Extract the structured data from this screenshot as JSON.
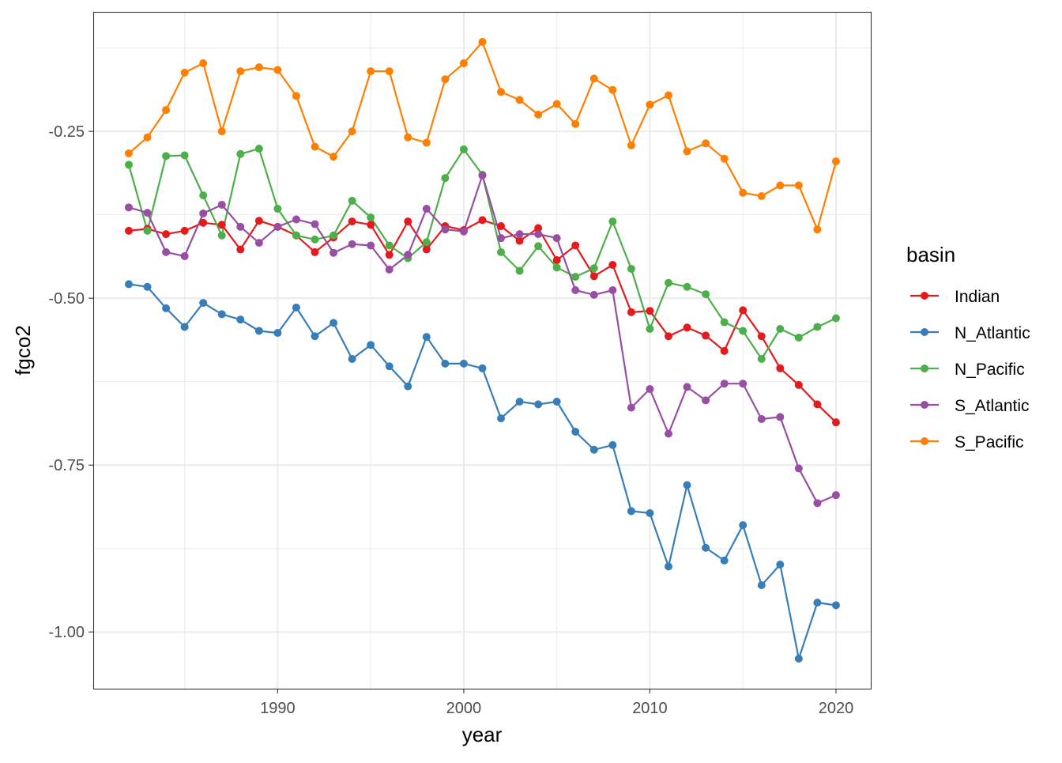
{
  "chart_data": {
    "type": "line",
    "title": "",
    "xlabel": "year",
    "ylabel": "fgco2",
    "xlim": [
      1980.09,
      2021.87
    ],
    "ylim": [
      -1.085,
      -0.071
    ],
    "x_ticks": [
      1990,
      2000,
      2010,
      2020
    ],
    "x_tick_labels": [
      "1990",
      "2000",
      "2010",
      "2020"
    ],
    "x_minor_ticks": [
      1985,
      1995,
      2005,
      2015
    ],
    "y_ticks": [
      -0.25,
      -0.5,
      -0.75,
      -1.0
    ],
    "y_tick_labels": [
      "-0.25",
      "-0.50",
      "-0.75",
      "-1.00"
    ],
    "y_minor_ticks": [
      -0.125,
      -0.375,
      -0.625,
      -0.875
    ],
    "grid": true,
    "legend": {
      "title": "basin",
      "position": "right"
    },
    "x": [
      1982,
      1983,
      1984,
      1985,
      1986,
      1987,
      1988,
      1989,
      1990,
      1991,
      1992,
      1993,
      1994,
      1995,
      1996,
      1997,
      1998,
      1999,
      2000,
      2001,
      2002,
      2003,
      2004,
      2005,
      2006,
      2007,
      2008,
      2009,
      2010,
      2011,
      2012,
      2013,
      2014,
      2015,
      2016,
      2017,
      2018,
      2019,
      2020
    ],
    "series": [
      {
        "name": "Indian",
        "color": "#E41A1C",
        "values": [
          -0.399,
          -0.396,
          -0.404,
          -0.399,
          -0.387,
          -0.39,
          -0.427,
          -0.384,
          -0.393,
          -0.406,
          -0.431,
          -0.409,
          -0.385,
          -0.39,
          -0.435,
          -0.385,
          -0.427,
          -0.392,
          -0.398,
          -0.383,
          -0.392,
          -0.414,
          -0.395,
          -0.443,
          -0.421,
          -0.467,
          -0.45,
          -0.521,
          -0.519,
          -0.557,
          -0.544,
          -0.556,
          -0.579,
          -0.518,
          -0.557,
          -0.605,
          -0.63,
          -0.659,
          -0.686
        ]
      },
      {
        "name": "N_Atlantic",
        "color": "#377EB8",
        "values": [
          -0.479,
          -0.483,
          -0.515,
          -0.543,
          -0.507,
          -0.524,
          -0.532,
          -0.549,
          -0.552,
          -0.514,
          -0.557,
          -0.537,
          -0.591,
          -0.57,
          -0.602,
          -0.632,
          -0.558,
          -0.598,
          -0.598,
          -0.605,
          -0.68,
          -0.655,
          -0.659,
          -0.655,
          -0.7,
          -0.727,
          -0.72,
          -0.819,
          -0.822,
          -0.902,
          -0.78,
          -0.874,
          -0.893,
          -0.84,
          -0.93,
          -0.899,
          -1.04,
          -0.956,
          -0.96
        ]
      },
      {
        "name": "N_Pacific",
        "color": "#4DAF4A",
        "values": [
          -0.3,
          -0.399,
          -0.287,
          -0.286,
          -0.346,
          -0.406,
          -0.284,
          -0.276,
          -0.366,
          -0.406,
          -0.412,
          -0.406,
          -0.354,
          -0.379,
          -0.421,
          -0.44,
          -0.416,
          -0.32,
          -0.277,
          -0.315,
          -0.431,
          -0.459,
          -0.422,
          -0.454,
          -0.468,
          -0.455,
          -0.385,
          -0.456,
          -0.546,
          -0.477,
          -0.483,
          -0.494,
          -0.536,
          -0.549,
          -0.591,
          -0.546,
          -0.559,
          -0.543,
          -0.53
        ]
      },
      {
        "name": "S_Atlantic",
        "color": "#984EA3",
        "values": [
          -0.364,
          -0.372,
          -0.431,
          -0.437,
          -0.373,
          -0.36,
          -0.393,
          -0.417,
          -0.393,
          -0.382,
          -0.389,
          -0.432,
          -0.419,
          -0.421,
          -0.457,
          -0.435,
          -0.366,
          -0.397,
          -0.4,
          -0.316,
          -0.41,
          -0.404,
          -0.404,
          -0.41,
          -0.488,
          -0.495,
          -0.488,
          -0.664,
          -0.636,
          -0.703,
          -0.633,
          -0.653,
          -0.628,
          -0.628,
          -0.681,
          -0.678,
          -0.755,
          -0.807,
          -0.795
        ]
      },
      {
        "name": "S_Pacific",
        "color": "#FF7F00",
        "values": [
          -0.283,
          -0.259,
          -0.218,
          -0.162,
          -0.148,
          -0.25,
          -0.16,
          -0.154,
          -0.158,
          -0.197,
          -0.273,
          -0.288,
          -0.25,
          -0.16,
          -0.16,
          -0.259,
          -0.267,
          -0.172,
          -0.148,
          -0.116,
          -0.191,
          -0.203,
          -0.225,
          -0.209,
          -0.239,
          -0.171,
          -0.188,
          -0.271,
          -0.21,
          -0.196,
          -0.28,
          -0.268,
          -0.291,
          -0.342,
          -0.347,
          -0.331,
          -0.331,
          -0.397,
          -0.295
        ]
      }
    ]
  }
}
